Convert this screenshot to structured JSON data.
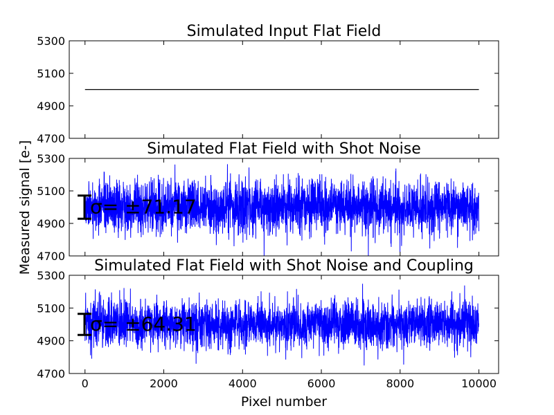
{
  "figure": {
    "ylabel": "Measured signal [e-]",
    "xlabel": "Pixel number"
  },
  "chart_data": [
    {
      "type": "line",
      "title": "Simulated Input Flat Field",
      "xlim": [
        -400,
        10500
      ],
      "ylim": [
        4700,
        5300
      ],
      "yticks": [
        4700,
        4900,
        5100,
        5300
      ],
      "xticks": [
        0,
        2000,
        4000,
        6000,
        8000,
        10000
      ],
      "show_xtick_labels": false,
      "color": "#000000",
      "grid": false,
      "x_range": [
        0,
        10000
      ],
      "mean": 5000,
      "noise_sigma": 0,
      "annotation": ""
    },
    {
      "type": "line",
      "title": "Simulated Flat Field with Shot Noise",
      "xlim": [
        -400,
        10500
      ],
      "ylim": [
        4700,
        5300
      ],
      "yticks": [
        4700,
        4900,
        5100,
        5300
      ],
      "xticks": [
        0,
        2000,
        4000,
        6000,
        8000,
        10000
      ],
      "show_xtick_labels": false,
      "color": "#0000ff",
      "grid": false,
      "x_range": [
        0,
        10000
      ],
      "mean": 5000,
      "noise_sigma": 71.17,
      "annotation": "σ= ±71.17"
    },
    {
      "type": "line",
      "title": "Simulated Flat Field with Shot Noise and Coupling",
      "xlim": [
        -400,
        10500
      ],
      "ylim": [
        4700,
        5300
      ],
      "yticks": [
        4700,
        4900,
        5100,
        5300
      ],
      "xticks": [
        0,
        2000,
        4000,
        6000,
        8000,
        10000
      ],
      "show_xtick_labels": true,
      "color": "#0000ff",
      "grid": false,
      "x_range": [
        0,
        10000
      ],
      "mean": 5000,
      "noise_sigma": 64.31,
      "annotation": "σ= ±64.31"
    }
  ]
}
